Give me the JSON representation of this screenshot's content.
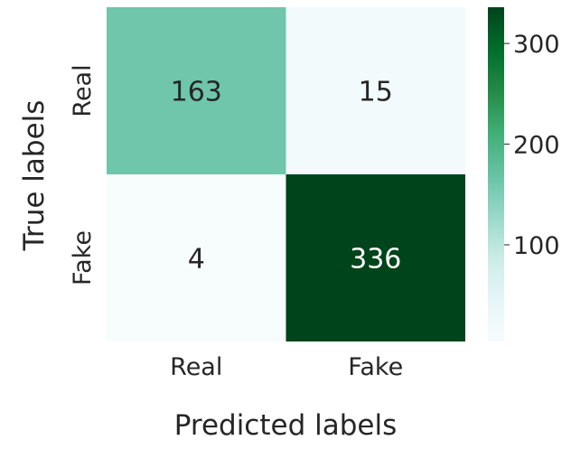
{
  "chart_data": {
    "type": "heatmap",
    "title": "",
    "xlabel": "Predicted labels",
    "ylabel": "True labels",
    "x_categories": [
      "Real",
      "Fake"
    ],
    "y_categories": [
      "Real",
      "Fake"
    ],
    "values": [
      [
        163,
        15
      ],
      [
        4,
        336
      ]
    ],
    "colormap": "BuGn",
    "vmin": 4,
    "vmax": 336,
    "colorbar_ticks": [
      100,
      200,
      300
    ],
    "annotations": true,
    "colors": {
      "low": "#f7fcfd",
      "high": "#00441b",
      "text_dark": "#262626",
      "text_light": "#ffffff"
    }
  }
}
